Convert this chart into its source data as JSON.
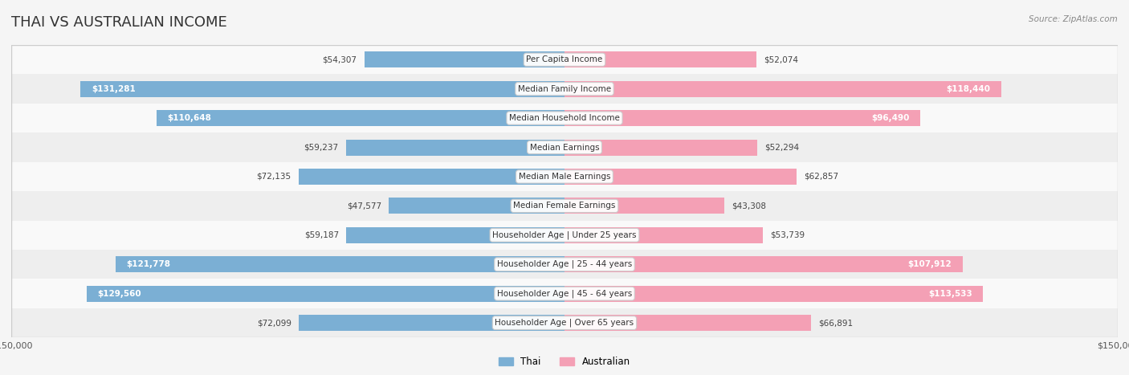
{
  "title": "THAI VS AUSTRALIAN INCOME",
  "source": "Source: ZipAtlas.com",
  "categories": [
    "Per Capita Income",
    "Median Family Income",
    "Median Household Income",
    "Median Earnings",
    "Median Male Earnings",
    "Median Female Earnings",
    "Householder Age | Under 25 years",
    "Householder Age | 25 - 44 years",
    "Householder Age | 45 - 64 years",
    "Householder Age | Over 65 years"
  ],
  "thai_values": [
    54307,
    131281,
    110648,
    59237,
    72135,
    47577,
    59187,
    121778,
    129560,
    72099
  ],
  "australian_values": [
    52074,
    118440,
    96490,
    52294,
    62857,
    43308,
    53739,
    107912,
    113533,
    66891
  ],
  "thai_color": "#7bafd4",
  "thai_color_dark": "#5b9ec9",
  "australian_color": "#f4a0b5",
  "australian_color_dark": "#e87fa0",
  "max_value": 150000,
  "bg_color": "#f5f5f5",
  "row_bg_light": "#f9f9f9",
  "row_bg_dark": "#eeeeee",
  "label_box_color": "#ffffff",
  "title_fontsize": 13,
  "label_fontsize": 7.5,
  "value_fontsize": 7.5,
  "axis_label_fontsize": 8
}
